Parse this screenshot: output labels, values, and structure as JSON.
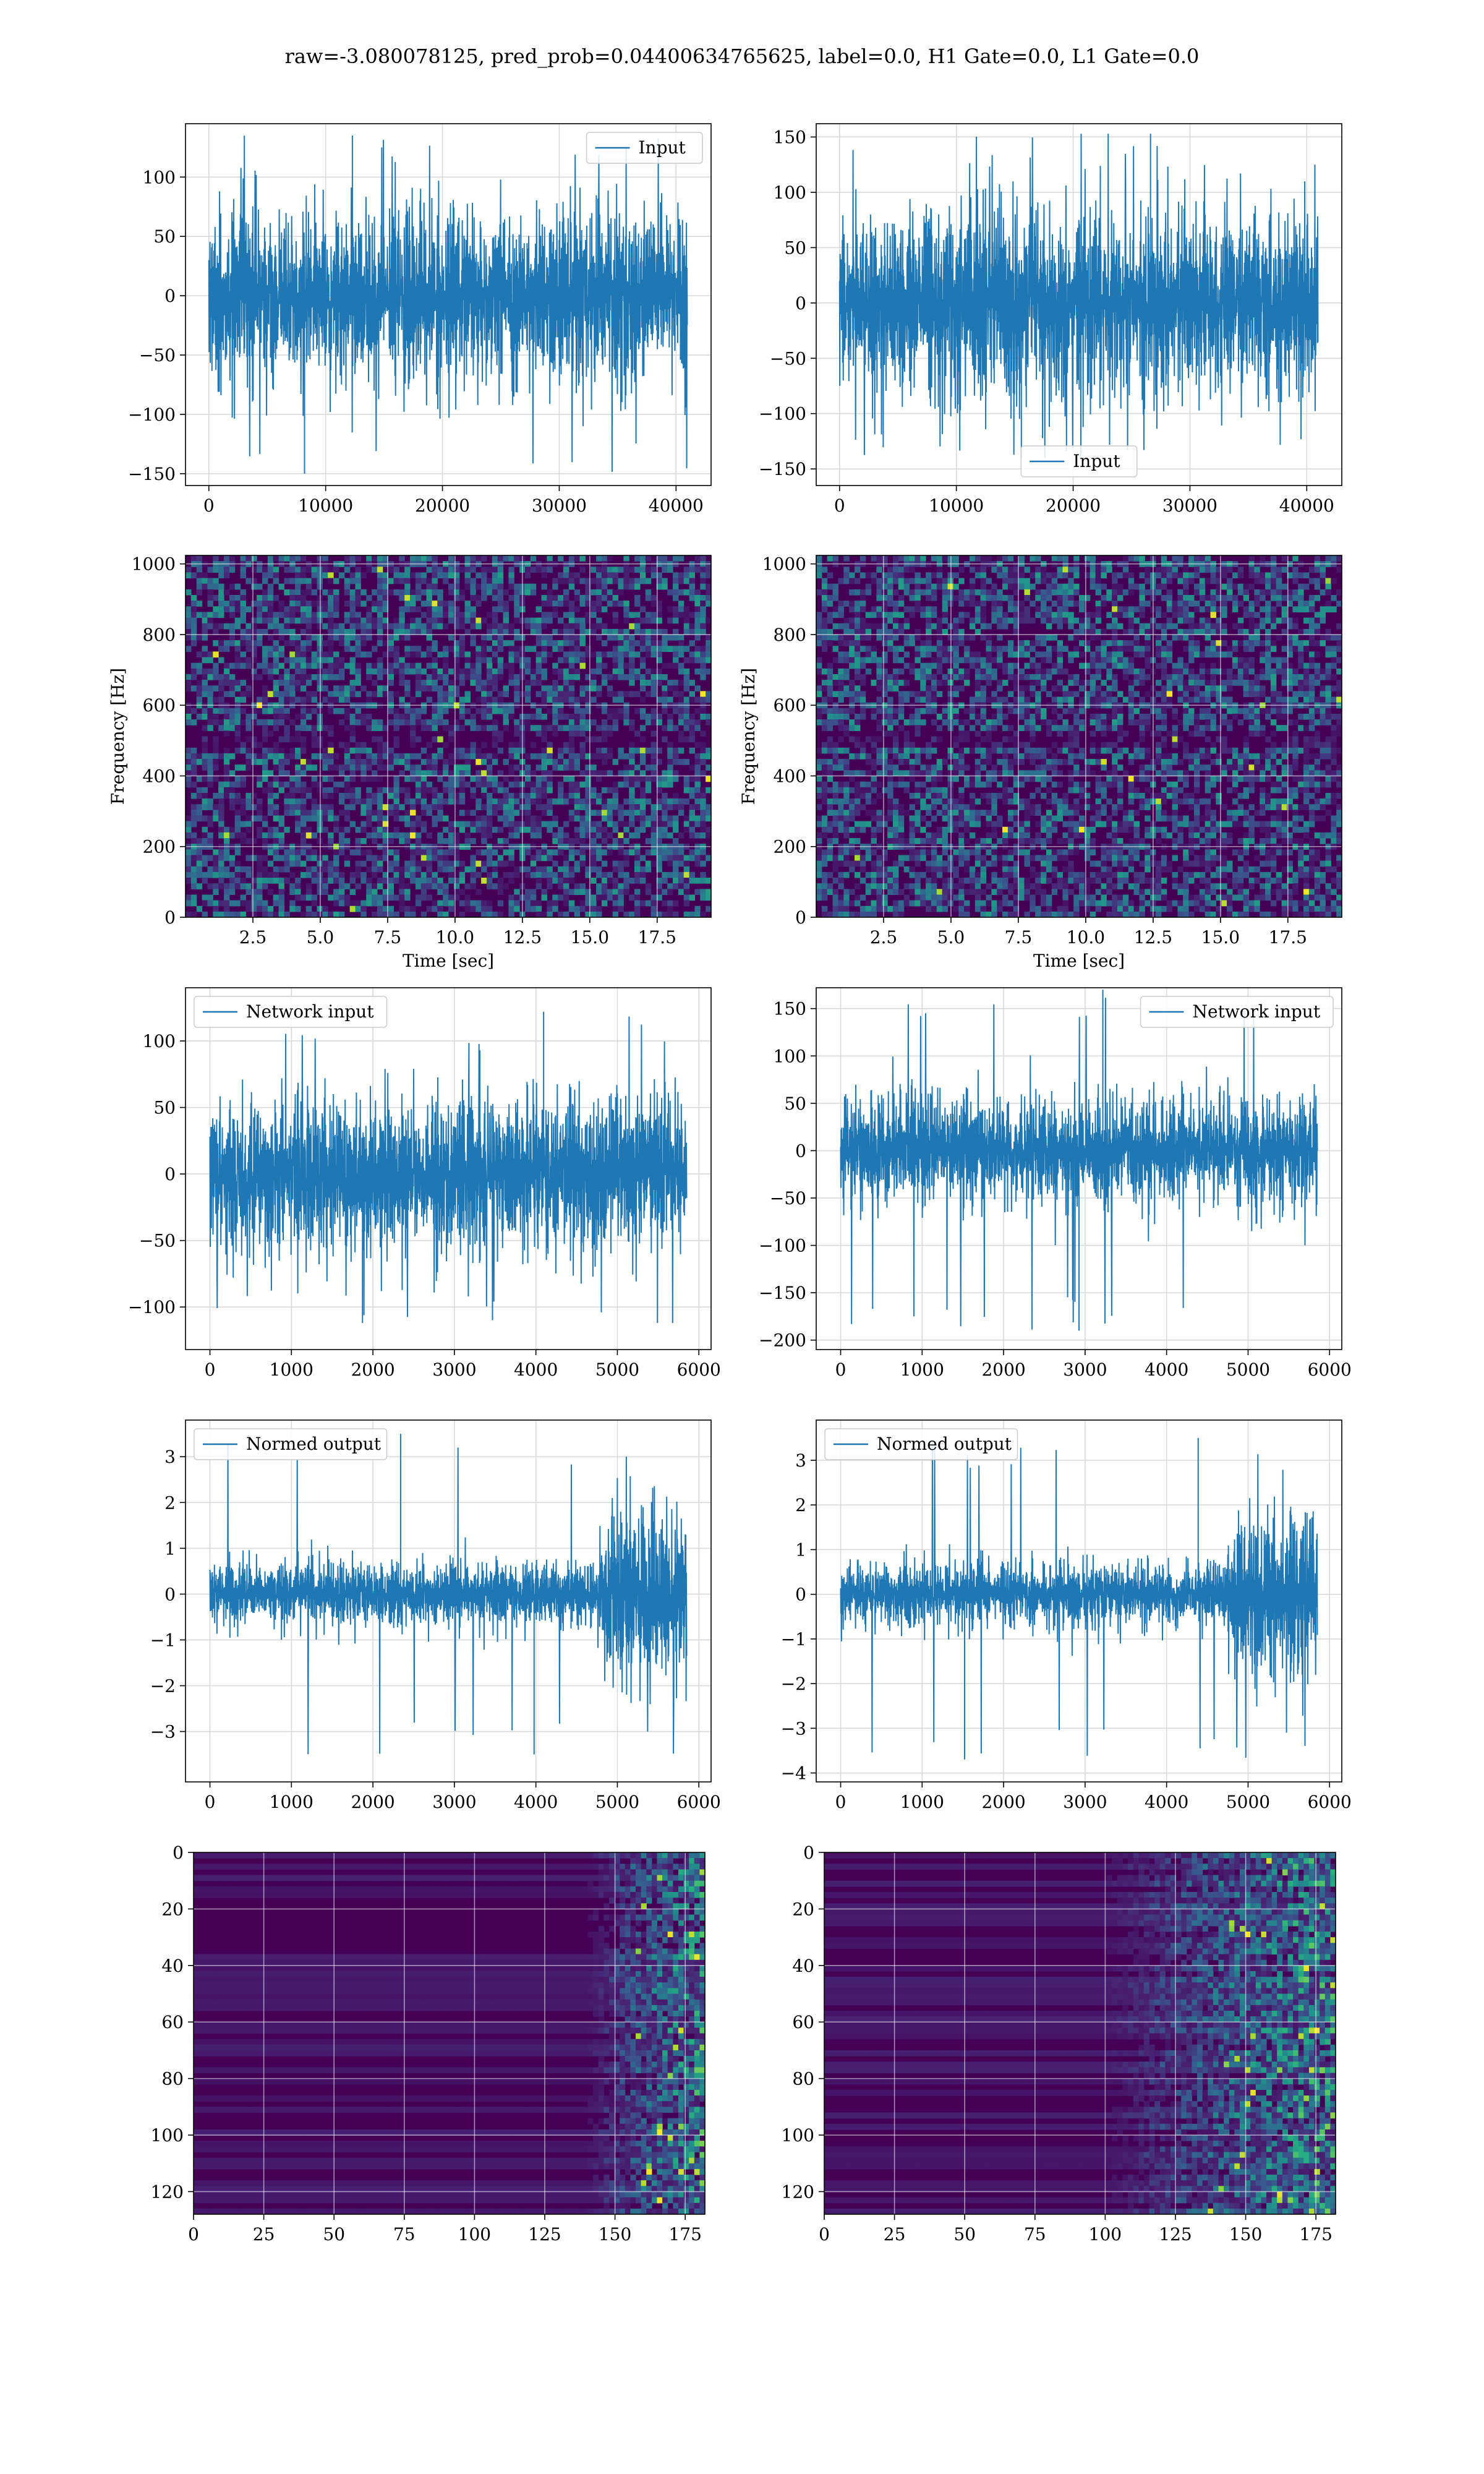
{
  "suptitle": "raw=-3.080078125, pred_prob=0.04400634765625, label=0.0, H1 Gate=0.0, L1 Gate=0.0",
  "colors": {
    "line": "#1f77b4",
    "grid": "#d9d9d9",
    "viridis_dark": "#440154"
  },
  "chart_data": [
    {
      "id": "r1c1",
      "type": "line",
      "legend": "Input",
      "legend_loc": "upper right",
      "xlim": [
        -2000,
        43000
      ],
      "ylim": [
        -160,
        145
      ],
      "xticks": [
        0,
        10000,
        20000,
        30000,
        40000
      ],
      "xtick_labels": [
        "0",
        "10000",
        "20000",
        "30000",
        "40000"
      ],
      "yticks": [
        -150,
        -100,
        -50,
        0,
        50,
        100
      ],
      "ytick_labels": [
        "−150",
        "−100",
        "−50",
        "0",
        "50",
        "100"
      ],
      "series": {
        "x_range": [
          0,
          40960
        ],
        "center": 0,
        "envelope": 70,
        "peak_max": 135,
        "peak_min": -150,
        "drift": 0
      },
      "xlabel": "",
      "ylabel": "",
      "grid": true
    },
    {
      "id": "r1c2",
      "type": "line",
      "legend": "Input",
      "legend_loc": "lower center",
      "xlim": [
        -2000,
        43000
      ],
      "ylim": [
        -165,
        162
      ],
      "xticks": [
        0,
        10000,
        20000,
        30000,
        40000
      ],
      "xtick_labels": [
        "0",
        "10000",
        "20000",
        "30000",
        "40000"
      ],
      "yticks": [
        -150,
        -100,
        -50,
        0,
        50,
        100,
        150
      ],
      "ytick_labels": [
        "−150",
        "−100",
        "−50",
        "0",
        "50",
        "100",
        "150"
      ],
      "series": {
        "x_range": [
          0,
          40960
        ],
        "center": 0,
        "envelope": 80,
        "peak_max": 153,
        "peak_min": -140,
        "drift": 0
      },
      "xlabel": "",
      "ylabel": "",
      "grid": true
    },
    {
      "id": "r2c1",
      "type": "heatmap",
      "xlim": [
        0,
        19.5
      ],
      "ylim": [
        0,
        1024
      ],
      "xticks": [
        2.5,
        5.0,
        7.5,
        10.0,
        12.5,
        15.0,
        17.5
      ],
      "xtick_labels": [
        "2.5",
        "5.0",
        "7.5",
        "10.0",
        "12.5",
        "15.0",
        "17.5"
      ],
      "yticks": [
        0,
        200,
        400,
        600,
        800,
        1000
      ],
      "ytick_labels": [
        "0",
        "200",
        "400",
        "600",
        "800",
        "1000"
      ],
      "xlabel": "Time [sec]",
      "ylabel": "Frequency [Hz]",
      "grid": true,
      "colormap": "viridis"
    },
    {
      "id": "r2c2",
      "type": "heatmap",
      "xlim": [
        0,
        19.5
      ],
      "ylim": [
        0,
        1024
      ],
      "xticks": [
        2.5,
        5.0,
        7.5,
        10.0,
        12.5,
        15.0,
        17.5
      ],
      "xtick_labels": [
        "2.5",
        "5.0",
        "7.5",
        "10.0",
        "12.5",
        "15.0",
        "17.5"
      ],
      "yticks": [
        0,
        200,
        400,
        600,
        800,
        1000
      ],
      "ytick_labels": [
        "0",
        "200",
        "400",
        "600",
        "800",
        "1000"
      ],
      "xlabel": "Time [sec]",
      "ylabel": "Frequency [Hz]",
      "grid": true,
      "colormap": "viridis"
    },
    {
      "id": "r3c1",
      "type": "line",
      "legend": "Network input",
      "legend_loc": "upper left",
      "xlim": [
        -300,
        6150
      ],
      "ylim": [
        -132,
        140
      ],
      "xticks": [
        0,
        1000,
        2000,
        3000,
        4000,
        5000,
        6000
      ],
      "xtick_labels": [
        "0",
        "1000",
        "2000",
        "3000",
        "4000",
        "5000",
        "6000"
      ],
      "yticks": [
        -100,
        -50,
        0,
        50,
        100
      ],
      "ytick_labels": [
        "−100",
        "−50",
        "0",
        "50",
        "100"
      ],
      "series": {
        "x_range": [
          0,
          5850
        ],
        "center": 0,
        "envelope": 55,
        "peak_max": 122,
        "peak_min": -112,
        "drift": 0
      },
      "xlabel": "",
      "ylabel": "",
      "grid": true
    },
    {
      "id": "r3c2",
      "type": "line",
      "legend": "Network input",
      "legend_loc": "upper right",
      "xlim": [
        -300,
        6150
      ],
      "ylim": [
        -210,
        172
      ],
      "xticks": [
        0,
        1000,
        2000,
        3000,
        4000,
        5000,
        6000
      ],
      "xtick_labels": [
        "0",
        "1000",
        "2000",
        "3000",
        "4000",
        "5000",
        "6000"
      ],
      "yticks": [
        -200,
        -150,
        -100,
        -50,
        0,
        50,
        100,
        150
      ],
      "ytick_labels": [
        "−200",
        "−150",
        "−100",
        "−50",
        "0",
        "50",
        "100",
        "150"
      ],
      "series": {
        "x_range": [
          0,
          5850
        ],
        "center": 0,
        "envelope": 55,
        "peak_max": 170,
        "peak_min": -190,
        "drift": 0
      },
      "xlabel": "",
      "ylabel": "",
      "grid": true
    },
    {
      "id": "r4c1",
      "type": "line",
      "legend": "Normed output",
      "legend_loc": "upper left",
      "xlim": [
        -300,
        6150
      ],
      "ylim": [
        -4.1,
        3.8
      ],
      "xticks": [
        0,
        1000,
        2000,
        3000,
        4000,
        5000,
        6000
      ],
      "xtick_labels": [
        "0",
        "1000",
        "2000",
        "3000",
        "4000",
        "5000",
        "6000"
      ],
      "yticks": [
        -3,
        -2,
        -1,
        0,
        1,
        2,
        3
      ],
      "ytick_labels": [
        "−3",
        "−2",
        "−1",
        "0",
        "1",
        "2",
        "3"
      ],
      "series": {
        "x_range": [
          0,
          5850
        ],
        "center": 0,
        "envelope": 0.65,
        "burst_start": 4700,
        "burst_envelope": 1.9,
        "peak_max": 3.5,
        "peak_min": -3.5,
        "drift": 0
      },
      "xlabel": "",
      "ylabel": "",
      "grid": true
    },
    {
      "id": "r4c2",
      "type": "line",
      "legend": "Normed output",
      "legend_loc": "upper left",
      "xlim": [
        -300,
        6150
      ],
      "ylim": [
        -4.2,
        3.9
      ],
      "xticks": [
        0,
        1000,
        2000,
        3000,
        4000,
        5000,
        6000
      ],
      "xtick_labels": [
        "0",
        "1000",
        "2000",
        "3000",
        "4000",
        "5000",
        "6000"
      ],
      "yticks": [
        -4,
        -3,
        -2,
        -1,
        0,
        1,
        2,
        3
      ],
      "ytick_labels": [
        "−4",
        "−3",
        "−2",
        "−1",
        "0",
        "1",
        "2",
        "3"
      ],
      "series": {
        "x_range": [
          0,
          5850
        ],
        "center": 0,
        "envelope": 0.65,
        "burst_start": 4650,
        "burst_envelope": 1.9,
        "peak_max": 3.5,
        "peak_min": -3.7,
        "drift": 0
      },
      "xlabel": "",
      "ylabel": "",
      "grid": true
    },
    {
      "id": "r5c1",
      "type": "heatmap",
      "xlim": [
        0,
        182
      ],
      "ylim": [
        128,
        0
      ],
      "xticks": [
        0,
        25,
        50,
        75,
        100,
        125,
        150,
        175
      ],
      "xtick_labels": [
        "0",
        "25",
        "50",
        "75",
        "100",
        "125",
        "150",
        "175"
      ],
      "yticks": [
        0,
        20,
        40,
        60,
        80,
        100,
        120
      ],
      "ytick_labels": [
        "0",
        "20",
        "40",
        "60",
        "80",
        "100",
        "120"
      ],
      "xlabel": "",
      "ylabel": "",
      "grid": true,
      "colormap": "viridis",
      "activity_start": 140
    },
    {
      "id": "r5c2",
      "type": "heatmap",
      "xlim": [
        0,
        182
      ],
      "ylim": [
        128,
        0
      ],
      "xticks": [
        0,
        25,
        50,
        75,
        100,
        125,
        150,
        175
      ],
      "xtick_labels": [
        "0",
        "25",
        "50",
        "75",
        "100",
        "125",
        "150",
        "175"
      ],
      "yticks": [
        0,
        20,
        40,
        60,
        80,
        100,
        120
      ],
      "ytick_labels": [
        "0",
        "20",
        "40",
        "60",
        "80",
        "100",
        "120"
      ],
      "xlabel": "",
      "ylabel": "",
      "grid": true,
      "colormap": "viridis",
      "activity_start": 100
    }
  ]
}
